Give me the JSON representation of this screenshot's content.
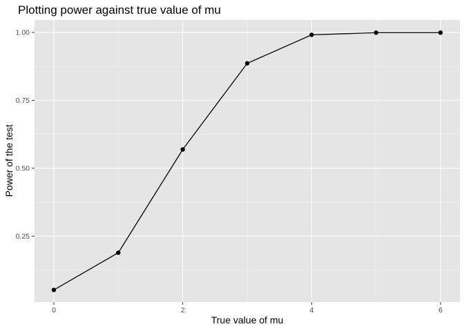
{
  "chart_data": {
    "type": "line",
    "title": "Plotting power against true value of mu",
    "xlabel": "True value of mu",
    "ylabel": "Power of the test",
    "x": [
      0,
      1,
      2,
      3,
      4,
      5,
      6
    ],
    "series": [
      {
        "values": [
          0.052,
          0.189,
          0.569,
          0.886,
          0.991,
          0.999,
          0.999
        ]
      }
    ],
    "xlim": [
      -0.3,
      6.3
    ],
    "ylim": [
      0.0074,
      1.0456
    ],
    "x_ticks": [
      0,
      2,
      4,
      6
    ],
    "x_tick_labels": [
      "0",
      "2",
      "4",
      "6"
    ],
    "y_ticks": [
      0.25,
      0.5,
      0.75,
      1.0
    ],
    "y_tick_labels": [
      "0.25",
      "0.50",
      "0.75",
      "1.00"
    ],
    "grid": true,
    "legend": "none",
    "colors": {
      "panel_background": "#e5e5e5",
      "grid_major": "#ffffff",
      "line": "#000000",
      "point": "#000000",
      "tick_mark": "#333333",
      "tick_label": "#4d4d4d"
    }
  }
}
